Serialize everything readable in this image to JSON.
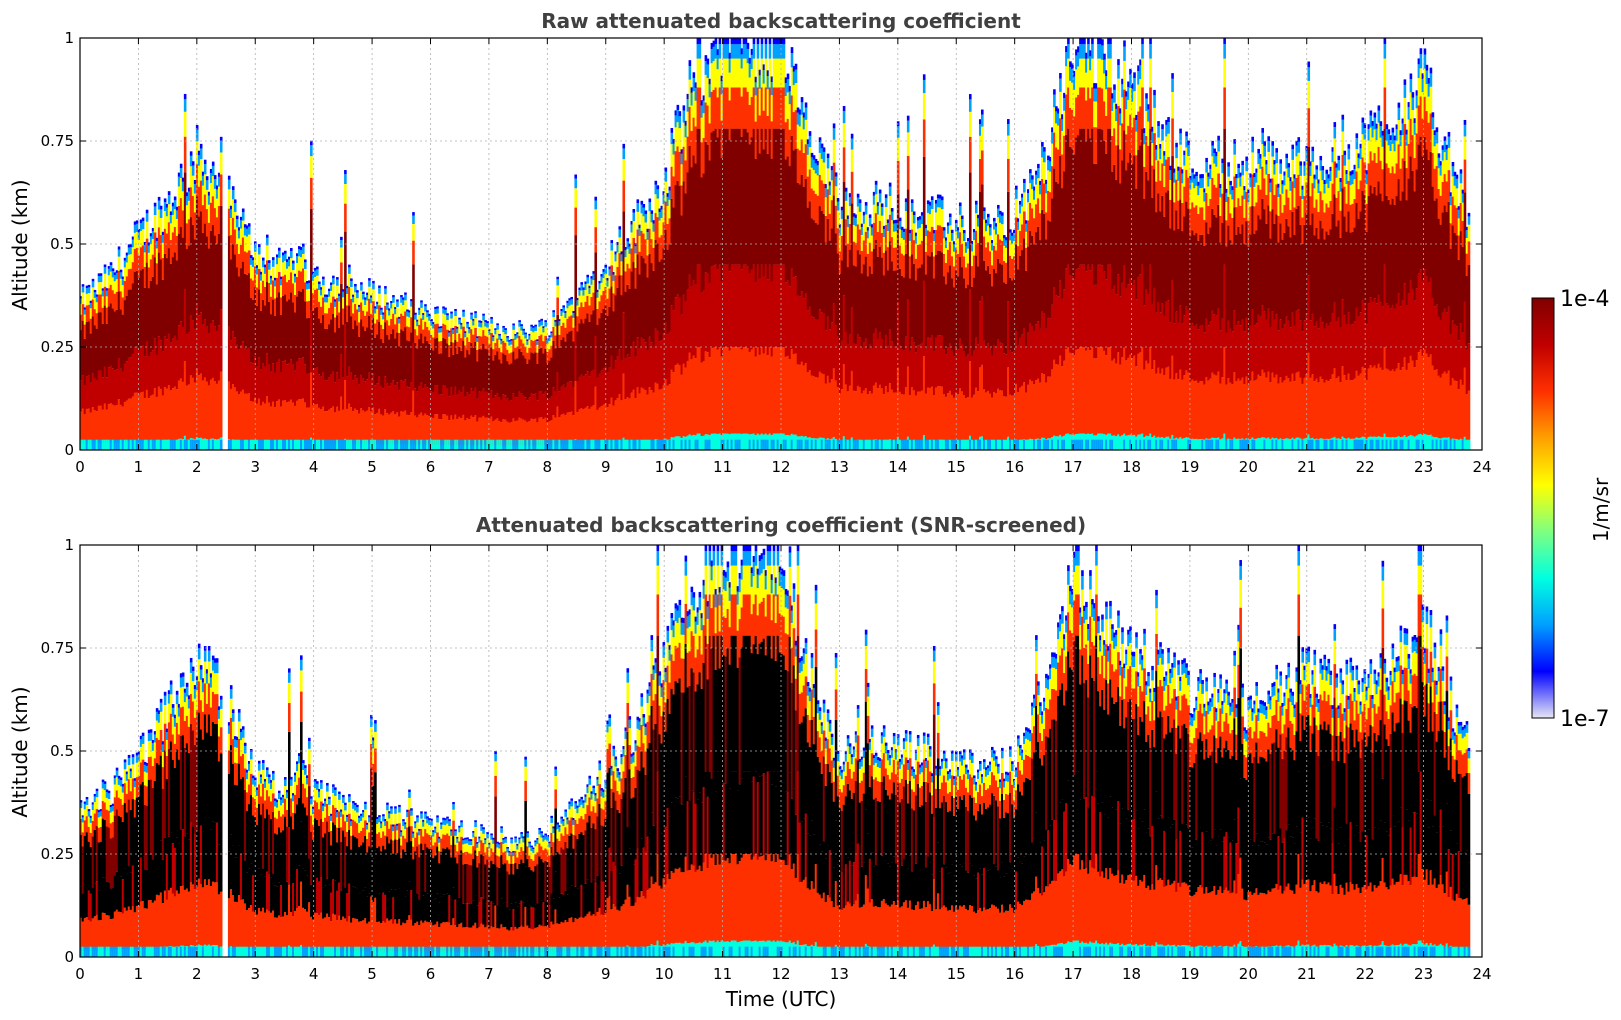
{
  "chart_data": [
    {
      "type": "heatmap",
      "title": "Raw attenuated backscattering coefficient",
      "xlabel": "",
      "ylabel": "Altitude (km)",
      "xlim": [
        0,
        24
      ],
      "ylim": [
        0,
        1
      ],
      "xticks": [
        0,
        1,
        2,
        3,
        4,
        5,
        6,
        7,
        8,
        9,
        10,
        11,
        12,
        13,
        14,
        15,
        16,
        17,
        18,
        19,
        20,
        21,
        22,
        23,
        24
      ],
      "xtick_labels": [
        "0",
        "1",
        "2",
        "3",
        "4",
        "5",
        "6",
        "7",
        "8",
        "9",
        "10",
        "11",
        "12",
        "13",
        "14",
        "15",
        "16",
        "17",
        "18",
        "19",
        "20",
        "21",
        "22",
        "23",
        "24"
      ],
      "yticks": [
        0,
        0.25,
        0.5,
        0.75,
        1
      ],
      "ytick_labels": [
        "0",
        "0.25",
        "0.5",
        "0.75",
        "1"
      ],
      "grid": true,
      "screened": false,
      "mixing_layer_top_km": [
        [
          0,
          0.36
        ],
        [
          0.5,
          0.42
        ],
        [
          1,
          0.52
        ],
        [
          1.5,
          0.6
        ],
        [
          2,
          0.72
        ],
        [
          2.3,
          0.68
        ],
        [
          2.6,
          0.6
        ],
        [
          3,
          0.48
        ],
        [
          3.5,
          0.44
        ],
        [
          3.8,
          0.48
        ],
        [
          4,
          0.42
        ],
        [
          5,
          0.38
        ],
        [
          6,
          0.33
        ],
        [
          7,
          0.3
        ],
        [
          7.5,
          0.29
        ],
        [
          8,
          0.3
        ],
        [
          8.5,
          0.38
        ],
        [
          9,
          0.45
        ],
        [
          9.5,
          0.55
        ],
        [
          10,
          0.65
        ],
        [
          10.5,
          0.9
        ],
        [
          11,
          1.0
        ],
        [
          12,
          1.0
        ],
        [
          12.5,
          0.75
        ],
        [
          13,
          0.6
        ],
        [
          14,
          0.6
        ],
        [
          15,
          0.55
        ],
        [
          16,
          0.55
        ],
        [
          16.5,
          0.7
        ],
        [
          17,
          1.0
        ],
        [
          18,
          0.9
        ],
        [
          19,
          0.7
        ],
        [
          20,
          0.7
        ],
        [
          21,
          0.7
        ],
        [
          22,
          0.75
        ],
        [
          23,
          0.9
        ],
        [
          23.8,
          0.55
        ]
      ],
      "data_gap_utc": [
        2.45,
        2.55
      ],
      "data_end_utc": 23.8
    },
    {
      "type": "heatmap",
      "title": "Attenuated backscattering coefficient (SNR-screened)",
      "xlabel": "Time (UTC)",
      "ylabel": "Altitude (km)",
      "xlim": [
        0,
        24
      ],
      "ylim": [
        0,
        1
      ],
      "xticks": [
        0,
        1,
        2,
        3,
        4,
        5,
        6,
        7,
        8,
        9,
        10,
        11,
        12,
        13,
        14,
        15,
        16,
        17,
        18,
        19,
        20,
        21,
        22,
        23,
        24
      ],
      "xtick_labels": [
        "0",
        "1",
        "2",
        "3",
        "4",
        "5",
        "6",
        "7",
        "8",
        "9",
        "10",
        "11",
        "12",
        "13",
        "14",
        "15",
        "16",
        "17",
        "18",
        "19",
        "20",
        "21",
        "22",
        "23",
        "24"
      ],
      "yticks": [
        0,
        0.25,
        0.5,
        0.75,
        1
      ],
      "ytick_labels": [
        "0",
        "0.25",
        "0.5",
        "0.75",
        "1"
      ],
      "grid": true,
      "screened": true,
      "mixing_layer_top_km": [
        [
          0,
          0.36
        ],
        [
          0.5,
          0.4
        ],
        [
          1,
          0.48
        ],
        [
          1.5,
          0.6
        ],
        [
          2,
          0.72
        ],
        [
          2.3,
          0.68
        ],
        [
          2.6,
          0.6
        ],
        [
          3,
          0.45
        ],
        [
          3.5,
          0.4
        ],
        [
          3.8,
          0.48
        ],
        [
          4,
          0.4
        ],
        [
          5,
          0.35
        ],
        [
          6,
          0.32
        ],
        [
          7,
          0.3
        ],
        [
          7.5,
          0.28
        ],
        [
          8,
          0.3
        ],
        [
          8.5,
          0.38
        ],
        [
          9,
          0.45
        ],
        [
          9.5,
          0.55
        ],
        [
          10,
          0.72
        ],
        [
          10.5,
          0.88
        ],
        [
          11,
          1.0
        ],
        [
          12,
          1.0
        ],
        [
          12.5,
          0.7
        ],
        [
          13,
          0.5
        ],
        [
          14,
          0.52
        ],
        [
          15,
          0.47
        ],
        [
          16,
          0.47
        ],
        [
          16.5,
          0.65
        ],
        [
          17,
          0.95
        ],
        [
          18,
          0.75
        ],
        [
          19,
          0.65
        ],
        [
          20,
          0.6
        ],
        [
          21,
          0.7
        ],
        [
          22,
          0.65
        ],
        [
          23,
          0.8
        ],
        [
          23.8,
          0.5
        ]
      ],
      "data_gap_utc": [
        2.45,
        2.55
      ],
      "data_end_utc": 23.8
    }
  ],
  "colorbar": {
    "label": "1/m/sr",
    "max_label": "1e-4",
    "min_label": "1e-7",
    "scale": "log",
    "range": [
      1e-07,
      0.0001
    ],
    "colormap": [
      "#e6e6f5",
      "#0000ff",
      "#00a0ff",
      "#00ffe0",
      "#80ff80",
      "#ffff00",
      "#ffa000",
      "#ff3000",
      "#c00000",
      "#800000"
    ]
  }
}
